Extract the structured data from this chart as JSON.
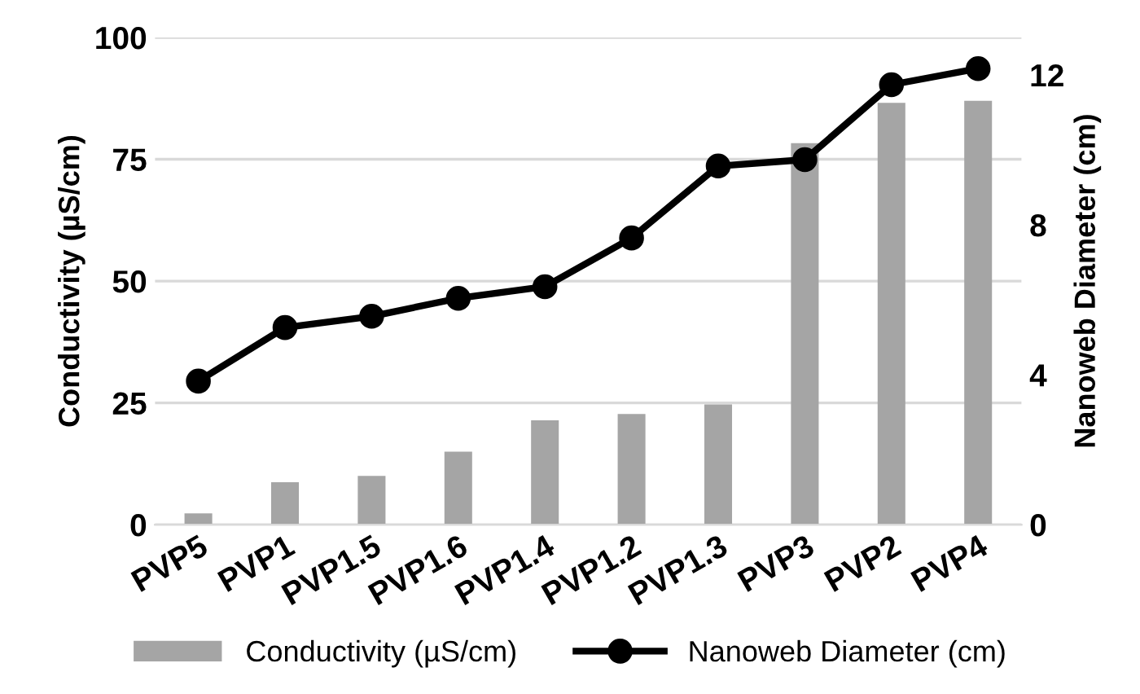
{
  "chart_data": {
    "type": "bar",
    "ylabel": "Conductivity (µS/cm)",
    "y2label": "Nanoweb Diameter (cm)",
    "categories": [
      "PVP5",
      "PVP1",
      "PVP1.5",
      "PVP1.6",
      "PVP1.4",
      "PVP1.2",
      "PVP1.3",
      "PVP3",
      "PVP2",
      "PVP4"
    ],
    "series": [
      {
        "name": "Conductivity (µS/cm)",
        "color": "#a5a5a5",
        "values": [
          2.3,
          8.7,
          10,
          15,
          21.4,
          22.7,
          24.7,
          78.3,
          86.6,
          87
        ]
      },
      {
        "name": "Nanoweb Diameter (cm)",
        "type": "line",
        "axis": "y2",
        "color": "#000000",
        "marker": "circle",
        "values": [
          3.83,
          5.26,
          5.56,
          6.04,
          6.35,
          7.65,
          9.57,
          9.74,
          11.74,
          12.17
        ]
      }
    ],
    "ylim": [
      0,
      100
    ],
    "yticks": [
      0,
      25,
      50,
      75,
      100
    ],
    "y2lim": [
      0,
      13
    ],
    "y2ticks": [
      0,
      4,
      8,
      12
    ],
    "grid": "y",
    "legend": "bottom"
  }
}
